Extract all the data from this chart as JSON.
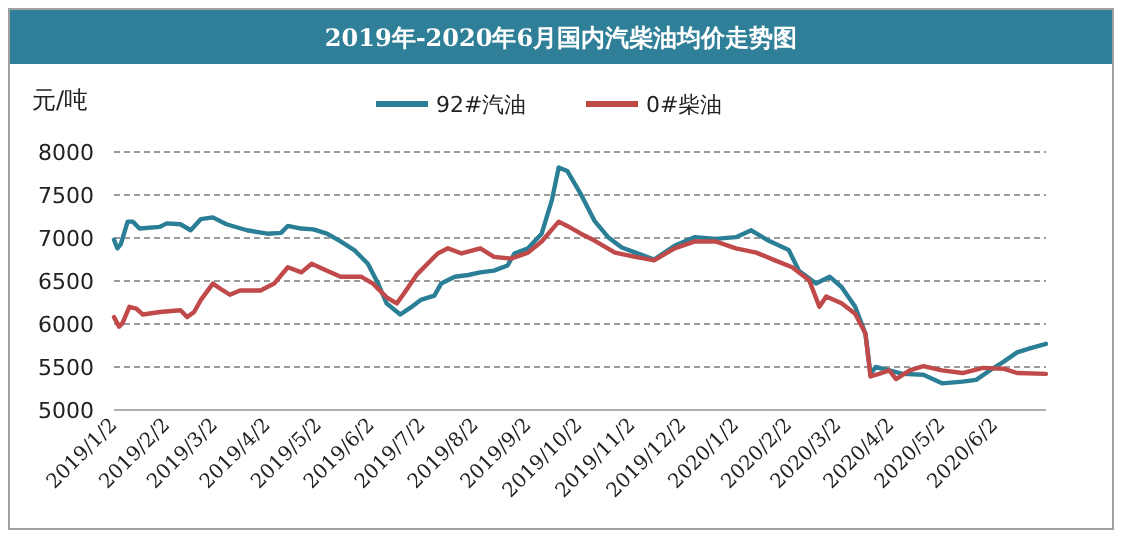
{
  "chart_data": {
    "type": "line",
    "title": "2019年-2020年6月国内汽柴油均价走势图",
    "ylabel": "元/吨",
    "grid": "y",
    "legend": "top",
    "xlim": [
      "2019-01-02",
      "2020-07-02"
    ],
    "ylim": [
      5000,
      8000
    ],
    "yticks": [
      5000,
      5500,
      6000,
      6500,
      7000,
      7500,
      8000
    ],
    "xticks": [
      {
        "value": "2019-01-02",
        "label": "2019/1/2"
      },
      {
        "value": "2019-02-02",
        "label": "2019/2/2"
      },
      {
        "value": "2019-03-02",
        "label": "2019/3/2"
      },
      {
        "value": "2019-04-02",
        "label": "2019/4/2"
      },
      {
        "value": "2019-05-02",
        "label": "2019/5/2"
      },
      {
        "value": "2019-06-02",
        "label": "2019/6/2"
      },
      {
        "value": "2019-07-02",
        "label": "2019/7/2"
      },
      {
        "value": "2019-08-02",
        "label": "2019/8/2"
      },
      {
        "value": "2019-09-02",
        "label": "2019/9/2"
      },
      {
        "value": "2019-10-02",
        "label": "2019/10/2"
      },
      {
        "value": "2019-11-02",
        "label": "2019/11/2"
      },
      {
        "value": "2019-12-02",
        "label": "2019/12/2"
      },
      {
        "value": "2020-01-02",
        "label": "2020/1/2"
      },
      {
        "value": "2020-02-02",
        "label": "2020/2/2"
      },
      {
        "value": "2020-03-02",
        "label": "2020/3/2"
      },
      {
        "value": "2020-04-02",
        "label": "2020/4/2"
      },
      {
        "value": "2020-05-02",
        "label": "2020/5/2"
      },
      {
        "value": "2020-06-02",
        "label": "2020/6/2"
      }
    ],
    "series": [
      {
        "name": "92#汽油",
        "color": "#2a7f96",
        "x": [
          "2019-01-02",
          "2019-01-04",
          "2019-01-06",
          "2019-01-10",
          "2019-01-13",
          "2019-01-17",
          "2019-01-29",
          "2019-02-02",
          "2019-02-10",
          "2019-02-16",
          "2019-02-22",
          "2019-03-01",
          "2019-03-09",
          "2019-03-21",
          "2019-04-02",
          "2019-04-10",
          "2019-04-14",
          "2019-04-22",
          "2019-04-29",
          "2019-05-07",
          "2019-05-15",
          "2019-05-23",
          "2019-05-31",
          "2019-06-06",
          "2019-06-11",
          "2019-06-19",
          "2019-06-25",
          "2019-07-01",
          "2019-07-09",
          "2019-07-13",
          "2019-07-21",
          "2019-07-29",
          "2019-08-05",
          "2019-08-13",
          "2019-08-21",
          "2019-08-25",
          "2019-09-02",
          "2019-09-10",
          "2019-09-16",
          "2019-09-20",
          "2019-09-25",
          "2019-10-03",
          "2019-10-11",
          "2019-10-19",
          "2019-10-27",
          "2019-11-04",
          "2019-11-15",
          "2019-11-27",
          "2019-12-09",
          "2019-12-21",
          "2020-01-02",
          "2020-01-11",
          "2020-01-21",
          "2020-02-02",
          "2020-02-08",
          "2020-02-18",
          "2020-02-26",
          "2020-03-04",
          "2020-03-12",
          "2020-03-18",
          "2020-03-21",
          "2020-03-24",
          "2020-04-01",
          "2020-04-09",
          "2020-04-21",
          "2020-05-02",
          "2020-05-14",
          "2020-05-22",
          "2020-05-30",
          "2020-06-07",
          "2020-06-15",
          "2020-06-23",
          "2020-07-02"
        ],
        "values": [
          6980,
          6880,
          6930,
          7190,
          7190,
          7110,
          7130,
          7170,
          7160,
          7090,
          7220,
          7240,
          7160,
          7090,
          7050,
          7060,
          7140,
          7110,
          7100,
          7050,
          6960,
          6860,
          6700,
          6470,
          6240,
          6110,
          6190,
          6280,
          6330,
          6470,
          6550,
          6570,
          6600,
          6620,
          6680,
          6820,
          6880,
          7050,
          7440,
          7820,
          7780,
          7510,
          7200,
          7010,
          6890,
          6830,
          6750,
          6910,
          7010,
          6990,
          7010,
          7090,
          6970,
          6860,
          6620,
          6470,
          6550,
          6430,
          6200,
          5890,
          5420,
          5500,
          5460,
          5420,
          5410,
          5310,
          5330,
          5350,
          5460,
          5560,
          5670,
          5720,
          5770
        ]
      },
      {
        "name": "0#柴油",
        "color": "#c0494a",
        "x": [
          "2019-01-02",
          "2019-01-05",
          "2019-01-07",
          "2019-01-11",
          "2019-01-15",
          "2019-01-19",
          "2019-01-29",
          "2019-02-10",
          "2019-02-14",
          "2019-02-18",
          "2019-02-22",
          "2019-03-01",
          "2019-03-07",
          "2019-03-11",
          "2019-03-17",
          "2019-03-29",
          "2019-04-06",
          "2019-04-14",
          "2019-04-22",
          "2019-04-28",
          "2019-05-07",
          "2019-05-15",
          "2019-05-27",
          "2019-06-03",
          "2019-06-11",
          "2019-06-17",
          "2019-06-21",
          "2019-06-29",
          "2019-07-11",
          "2019-07-17",
          "2019-07-25",
          "2019-08-05",
          "2019-08-13",
          "2019-08-23",
          "2019-09-02",
          "2019-09-10",
          "2019-09-20",
          "2019-09-25",
          "2019-10-03",
          "2019-10-11",
          "2019-10-23",
          "2019-11-04",
          "2019-11-15",
          "2019-11-27",
          "2019-12-09",
          "2019-12-21",
          "2020-01-02",
          "2020-01-14",
          "2020-01-25",
          "2020-02-04",
          "2020-02-14",
          "2020-02-20",
          "2020-02-24",
          "2020-03-04",
          "2020-03-12",
          "2020-03-18",
          "2020-03-21",
          "2020-03-26",
          "2020-04-01",
          "2020-04-05",
          "2020-04-13",
          "2020-04-21",
          "2020-05-02",
          "2020-05-14",
          "2020-05-26",
          "2020-06-07",
          "2020-06-15",
          "2020-07-02"
        ],
        "values": [
          6080,
          5970,
          6010,
          6200,
          6180,
          6110,
          6140,
          6160,
          6080,
          6140,
          6280,
          6470,
          6390,
          6340,
          6390,
          6390,
          6470,
          6660,
          6600,
          6700,
          6620,
          6550,
          6550,
          6470,
          6310,
          6240,
          6350,
          6580,
          6820,
          6880,
          6820,
          6880,
          6780,
          6760,
          6830,
          6960,
          7190,
          7140,
          7050,
          6970,
          6830,
          6780,
          6740,
          6880,
          6960,
          6960,
          6880,
          6830,
          6740,
          6660,
          6510,
          6200,
          6320,
          6240,
          6120,
          5890,
          5390,
          5420,
          5460,
          5360,
          5460,
          5510,
          5460,
          5430,
          5490,
          5480,
          5430,
          5420
        ]
      }
    ]
  }
}
